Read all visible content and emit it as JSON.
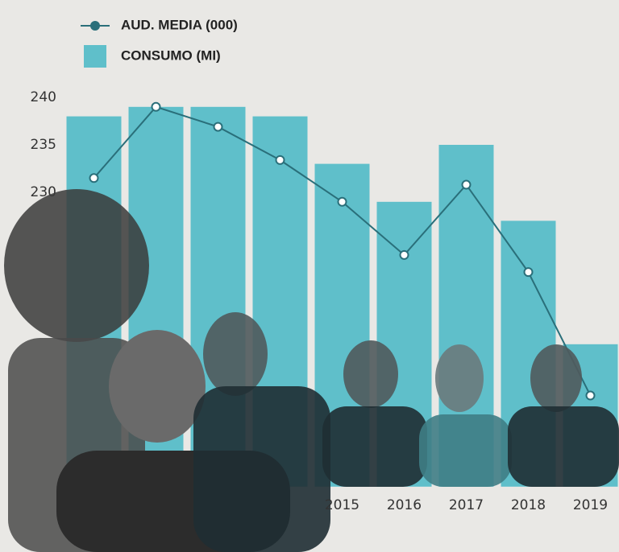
{
  "chart_data": {
    "type": "bar_line",
    "categories": [
      null,
      null,
      null,
      null,
      "2015",
      "2016",
      "2017",
      "2018",
      "2019"
    ],
    "series": [
      {
        "name": "CONSUMO (MI)",
        "kind": "bar",
        "color": "#5fbfca",
        "values": [
          238,
          239,
          239,
          238,
          233,
          229,
          235,
          227,
          214
        ]
      },
      {
        "name": "AUD. MEDIA (000)",
        "kind": "line",
        "color": "#2a6f7a",
        "values": [
          231.5,
          239,
          236.9,
          233.4,
          229,
          223.4,
          230.8,
          221.6,
          208.6
        ]
      }
    ],
    "ylim": [
      199,
      240
    ],
    "yticks": [
      230,
      235,
      240
    ]
  }
}
